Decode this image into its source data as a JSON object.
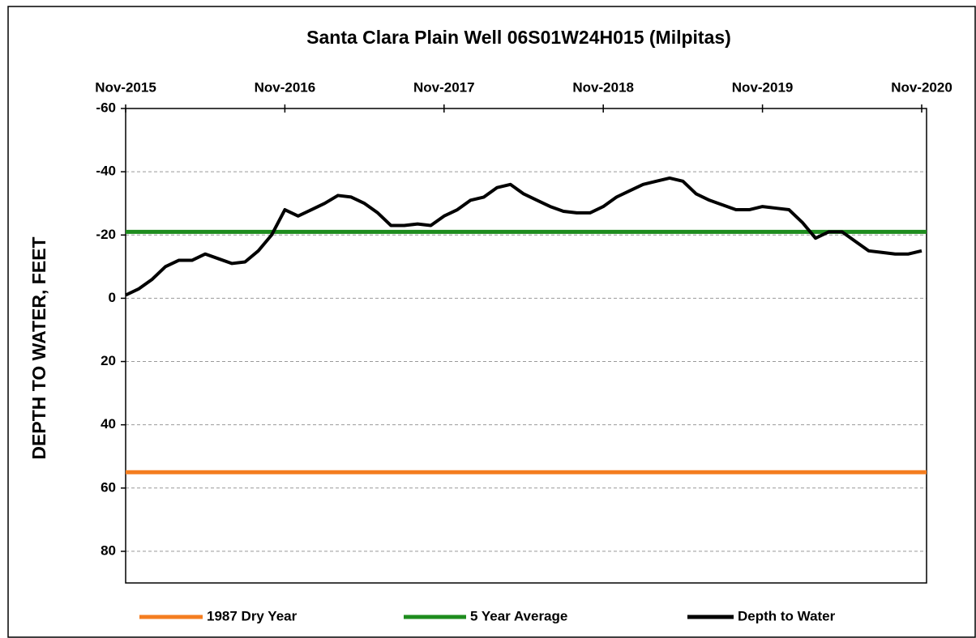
{
  "chart_data": {
    "type": "line",
    "title": "Santa Clara Plain Well 06S01W24H015  (Milpitas)",
    "y_label": "DEPTH TO WATER, FEET",
    "invert_y": true,
    "grid": true,
    "x_axis_position": "top",
    "ylim": [
      -60,
      90
    ],
    "yticks": [
      -60,
      -40,
      -20,
      0,
      20,
      40,
      60,
      80
    ],
    "xlim": [
      "2015-11",
      "2020-11"
    ],
    "xticks": [
      {
        "value": "2015-11",
        "label": "Nov-2015"
      },
      {
        "value": "2016-11",
        "label": "Nov-2016"
      },
      {
        "value": "2017-11",
        "label": "Nov-2017"
      },
      {
        "value": "2018-11",
        "label": "Nov-2018"
      },
      {
        "value": "2019-11",
        "label": "Nov-2019"
      },
      {
        "value": "2020-11",
        "label": "Nov-2020"
      }
    ],
    "reference_lines": [
      {
        "name": "1987 Dry Year",
        "color": "#f47d20",
        "value": 55
      },
      {
        "name": "5 Year Average",
        "color": "#1e8c1e",
        "value": -21
      }
    ],
    "x": [
      "2015-11",
      "2015-12",
      "2016-01",
      "2016-02",
      "2016-03",
      "2016-04",
      "2016-05",
      "2016-06",
      "2016-07",
      "2016-08",
      "2016-09",
      "2016-10",
      "2016-11",
      "2016-12",
      "2017-01",
      "2017-02",
      "2017-03",
      "2017-04",
      "2017-05",
      "2017-06",
      "2017-07",
      "2017-08",
      "2017-09",
      "2017-10",
      "2017-11",
      "2017-12",
      "2018-01",
      "2018-02",
      "2018-03",
      "2018-04",
      "2018-05",
      "2018-06",
      "2018-07",
      "2018-08",
      "2018-09",
      "2018-10",
      "2018-11",
      "2018-12",
      "2019-01",
      "2019-02",
      "2019-03",
      "2019-04",
      "2019-05",
      "2019-06",
      "2019-07",
      "2019-08",
      "2019-09",
      "2019-10",
      "2019-11",
      "2019-12",
      "2020-01",
      "2020-02",
      "2020-03",
      "2020-04",
      "2020-05",
      "2020-06",
      "2020-07",
      "2020-08",
      "2020-09",
      "2020-10",
      "2020-11"
    ],
    "series": [
      {
        "name": "Depth to Water",
        "color": "#000000",
        "values": [
          -1,
          -3,
          -6,
          -10,
          -12,
          -12,
          -14,
          -12.5,
          -11,
          -11.5,
          -15,
          -20,
          -28,
          -26,
          -28,
          -30,
          -32.5,
          -32,
          -30,
          -27,
          -23,
          -23,
          -23.5,
          -23,
          -26,
          -28,
          -31,
          -32,
          -35,
          -36,
          -33,
          -31,
          -29,
          -27.5,
          -27,
          -27,
          -29,
          -32,
          -34,
          -36,
          -37,
          -38,
          -37,
          -33,
          -31,
          -29.5,
          -28,
          -28,
          -29,
          -28.5,
          -28,
          -24,
          -19,
          -21,
          -21,
          -18,
          -15,
          -14.5,
          -14,
          -14,
          -15
        ]
      }
    ]
  }
}
